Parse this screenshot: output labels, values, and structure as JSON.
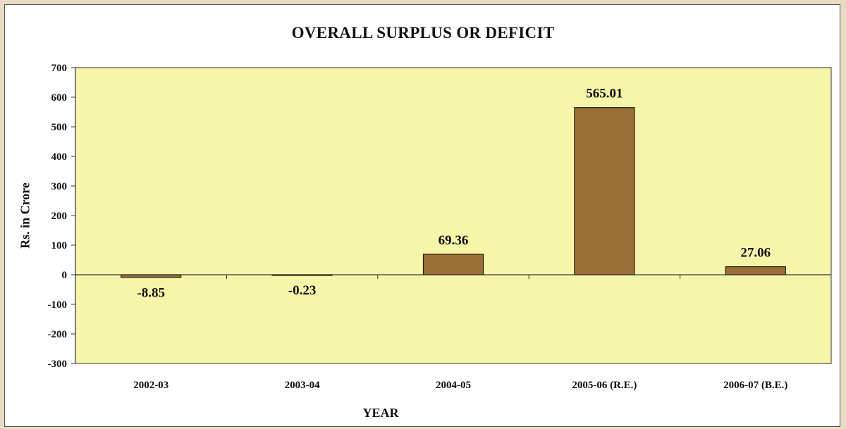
{
  "chart_data": {
    "type": "bar",
    "title": "OVERALL SURPLUS OR DEFICIT",
    "xlabel": "YEAR",
    "ylabel": "Rs. in Crore",
    "categories": [
      "2002-03",
      "2003-04",
      "2004-05",
      "2005-06 (R.E.)",
      "2006-07 (B.E.)"
    ],
    "values": [
      -8.85,
      -0.23,
      69.36,
      565.01,
      27.06
    ],
    "data_labels": [
      "-8.85",
      "-0.23",
      "69.36",
      "565.01",
      "27.06"
    ],
    "ylim": [
      -300,
      700
    ],
    "yticks": [
      700,
      600,
      500,
      400,
      300,
      200,
      100,
      0,
      -100,
      -200,
      -300
    ],
    "grid": false,
    "legend": "none",
    "colors": {
      "plot_background": "#f6f6aa",
      "bar_fill": "#9a7038",
      "bar_stroke": "#2a1a08",
      "axis": "#333333"
    }
  }
}
